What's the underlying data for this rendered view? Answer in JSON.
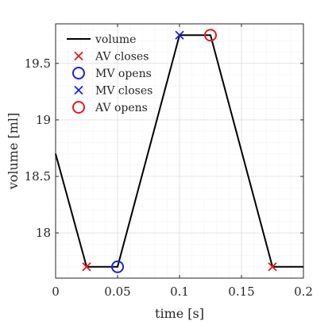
{
  "chart_data": {
    "type": "line",
    "xlabel": "time [s]",
    "ylabel": "volume [ml]",
    "xlim": [
      0,
      0.2
    ],
    "ylim": [
      17.6,
      19.85
    ],
    "grid": true,
    "legend_position": "top-left",
    "x_ticks": [
      0,
      0.05,
      0.1,
      0.15,
      0.2
    ],
    "x_tick_labels": [
      "0",
      "0.05",
      "0.1",
      "0.15",
      "0.2"
    ],
    "y_ticks": [
      18,
      18.5,
      19,
      19.5
    ],
    "y_tick_labels": [
      "18",
      "18.5",
      "19",
      "19.5"
    ],
    "series": [
      {
        "name": "volume",
        "color": "#000000",
        "x": [
          0,
          0.025,
          0.05,
          0.1,
          0.125,
          0.175,
          0.2
        ],
        "y": [
          18.7,
          17.7,
          17.7,
          19.75,
          19.75,
          17.7,
          17.7
        ]
      }
    ],
    "events": [
      {
        "name": "AV closes",
        "marker": "x",
        "color": "#e41a1c",
        "points": [
          [
            0.025,
            17.7
          ],
          [
            0.175,
            17.7
          ]
        ]
      },
      {
        "name": "MV opens",
        "marker": "circle",
        "color": "#1f1fd6",
        "points": [
          [
            0.05,
            17.7
          ]
        ]
      },
      {
        "name": "MV closes",
        "marker": "x",
        "color": "#1f1fd6",
        "points": [
          [
            0.1,
            19.75
          ]
        ]
      },
      {
        "name": "AV opens",
        "marker": "circle",
        "color": "#e41a1c",
        "points": [
          [
            0.125,
            19.75
          ]
        ]
      }
    ]
  }
}
